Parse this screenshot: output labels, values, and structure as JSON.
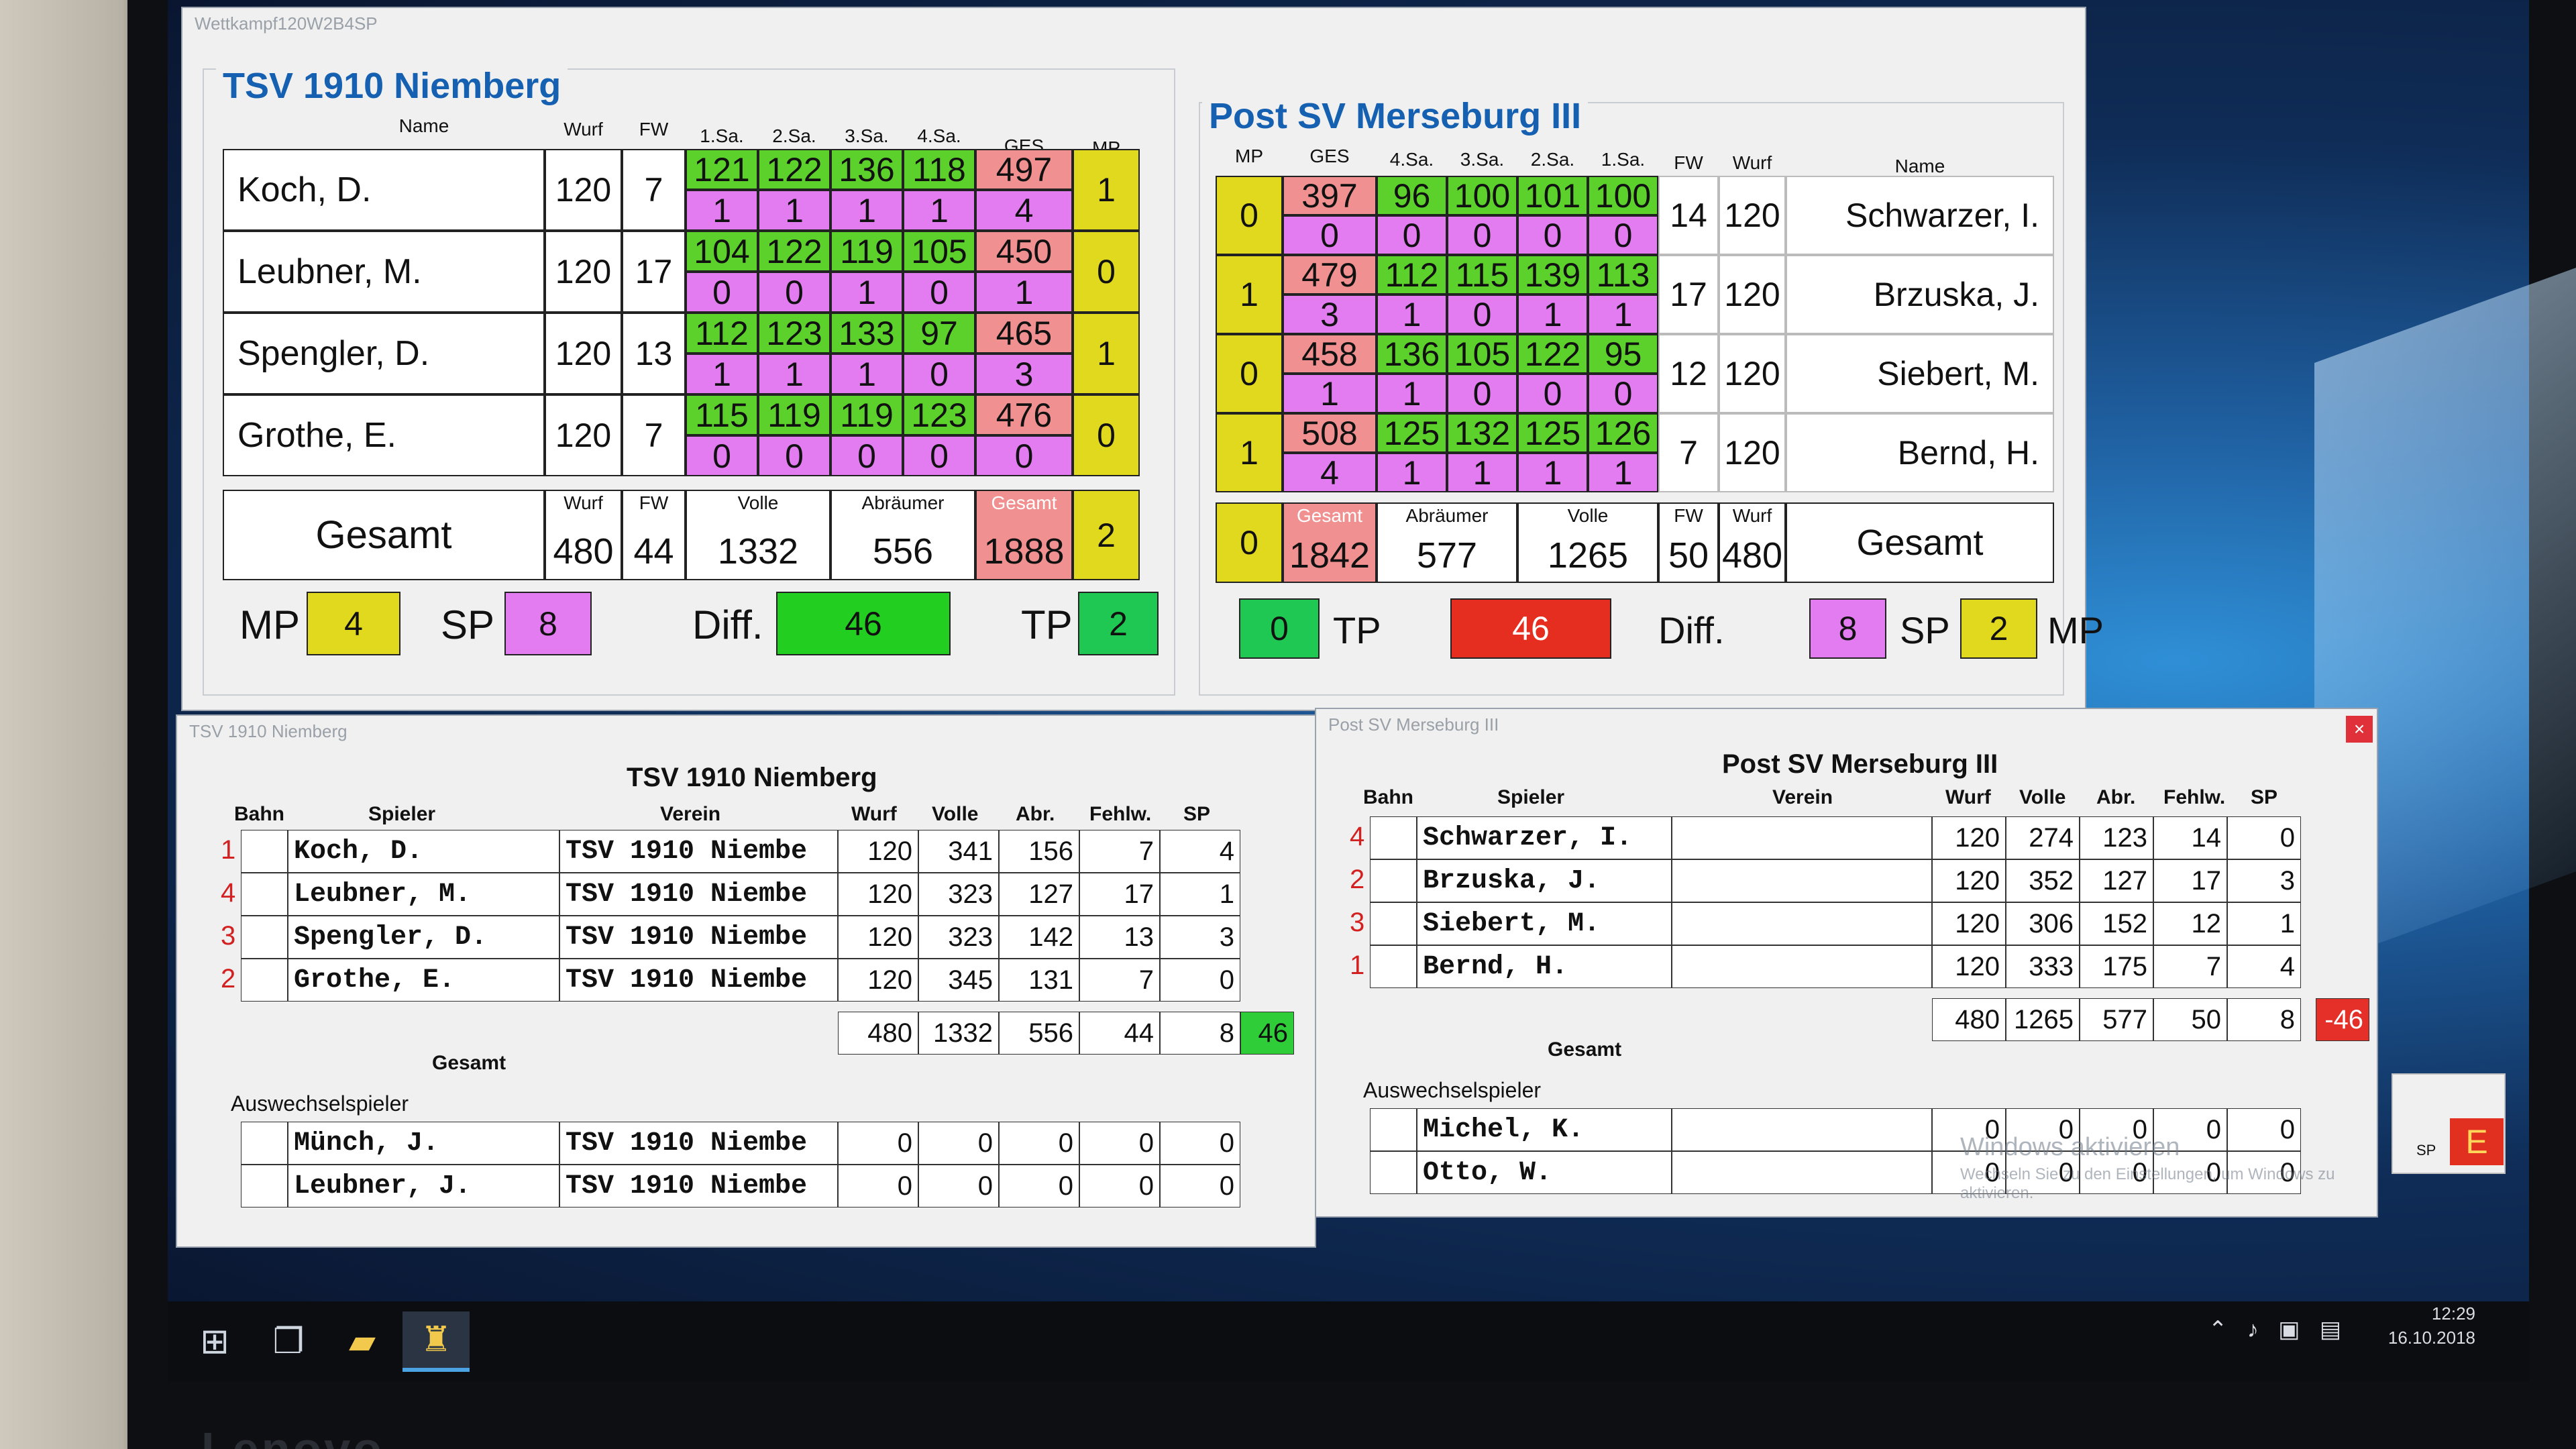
{
  "main": {
    "title": "Wettkampf120W2B4SP"
  },
  "home": {
    "team": "TSV 1910 Niemberg",
    "hdr": {
      "name": "Name",
      "wurf": "Wurf",
      "fw": "FW",
      "s1": "1.Sa.",
      "s2": "2.Sa.",
      "s3": "3.Sa.",
      "s4": "4.Sa.",
      "ges": "GES",
      "mp": "MP"
    },
    "players": [
      {
        "name": "Koch, D.",
        "wurf": "120",
        "fw": "7",
        "s": [
          "121",
          "122",
          "136",
          "118"
        ],
        "ges": "497",
        "sp": [
          "1",
          "1",
          "1",
          "1"
        ],
        "spsum": "4",
        "mp": "1"
      },
      {
        "name": "Leubner, M.",
        "wurf": "120",
        "fw": "17",
        "s": [
          "104",
          "122",
          "119",
          "105"
        ],
        "ges": "450",
        "sp": [
          "0",
          "0",
          "1",
          "0"
        ],
        "spsum": "1",
        "mp": "0"
      },
      {
        "name": "Spengler, D.",
        "wurf": "120",
        "fw": "13",
        "s": [
          "112",
          "123",
          "133",
          "97"
        ],
        "ges": "465",
        "sp": [
          "1",
          "1",
          "1",
          "0"
        ],
        "spsum": "3",
        "mp": "1"
      },
      {
        "name": "Grothe, E.",
        "wurf": "120",
        "fw": "7",
        "s": [
          "115",
          "119",
          "119",
          "123"
        ],
        "ges": "476",
        "sp": [
          "0",
          "0",
          "0",
          "0"
        ],
        "spsum": "0",
        "mp": "0"
      }
    ],
    "total": {
      "label": "Gesamt",
      "wurf_l": "Wurf",
      "fw_l": "FW",
      "volle_l": "Volle",
      "abr_l": "Abräumer",
      "ges_l": "Gesamt",
      "wurf": "480",
      "fw": "44",
      "volle": "1332",
      "abr": "556",
      "ges": "1888",
      "mp": "2"
    },
    "summary": {
      "mp_l": "MP",
      "mp": "4",
      "sp_l": "SP",
      "sp": "8",
      "diff_l": "Diff.",
      "diff": "46",
      "tp_l": "TP",
      "tp": "2"
    }
  },
  "guest": {
    "team": "Post SV Merseburg III",
    "hdr": {
      "mp": "MP",
      "ges": "GES",
      "s4": "4.Sa.",
      "s3": "3.Sa.",
      "s2": "2.Sa.",
      "s1": "1.Sa.",
      "fw": "FW",
      "wurf": "Wurf",
      "name": "Name"
    },
    "players": [
      {
        "name": "Schwarzer, I.",
        "wurf": "120",
        "fw": "14",
        "s": [
          "96",
          "100",
          "101",
          "100"
        ],
        "ges": "397",
        "sp": [
          "0",
          "0",
          "0",
          "0"
        ],
        "spsum": "0",
        "mp": "0"
      },
      {
        "name": "Brzuska, J.",
        "wurf": "120",
        "fw": "17",
        "s": [
          "112",
          "115",
          "139",
          "113"
        ],
        "ges": "479",
        "sp": [
          "1",
          "0",
          "1",
          "1"
        ],
        "spsum": "3",
        "mp": "1"
      },
      {
        "name": "Siebert, M.",
        "wurf": "120",
        "fw": "12",
        "s": [
          "136",
          "105",
          "122",
          "95"
        ],
        "ges": "458",
        "sp": [
          "1",
          "0",
          "0",
          "0"
        ],
        "spsum": "1",
        "mp": "0"
      },
      {
        "name": "Bernd, H.",
        "wurf": "120",
        "fw": "7",
        "s": [
          "125",
          "132",
          "125",
          "126"
        ],
        "ges": "508",
        "sp": [
          "1",
          "1",
          "1",
          "1"
        ],
        "spsum": "4",
        "mp": "1"
      }
    ],
    "total": {
      "label": "Gesamt",
      "ges_l": "Gesamt",
      "abr_l": "Abräumer",
      "volle_l": "Volle",
      "fw_l": "FW",
      "wurf_l": "Wurf",
      "mp": "0",
      "ges": "1842",
      "abr": "577",
      "volle": "1265",
      "fw": "50",
      "wurf": "480"
    },
    "summary": {
      "tp": "0",
      "tp_l": "TP",
      "diff": "46",
      "diff_l": "Diff.",
      "sp": "8",
      "sp_l": "SP",
      "mp": "2",
      "mp_l": "MP"
    }
  },
  "homeWin": {
    "title": "TSV 1910 Niemberg",
    "heading": "TSV 1910 Niemberg",
    "cols": {
      "bahn": "Bahn",
      "spieler": "Spieler",
      "verein": "Verein",
      "wurf": "Wurf",
      "volle": "Volle",
      "abr": "Abr.",
      "fehlw": "Fehlw.",
      "sp": "SP"
    },
    "rows": [
      {
        "bahn": "1",
        "spieler": "Koch, D.",
        "verein": "TSV 1910 Niembe",
        "wurf": "120",
        "volle": "341",
        "abr": "156",
        "fehlw": "7",
        "sp": "4"
      },
      {
        "bahn": "4",
        "spieler": "Leubner, M.",
        "verein": "TSV 1910 Niembe",
        "wurf": "120",
        "volle": "323",
        "abr": "127",
        "fehlw": "17",
        "sp": "1"
      },
      {
        "bahn": "3",
        "spieler": "Spengler, D.",
        "verein": "TSV 1910 Niembe",
        "wurf": "120",
        "volle": "323",
        "abr": "142",
        "fehlw": "13",
        "sp": "3"
      },
      {
        "bahn": "2",
        "spieler": "Grothe, E.",
        "verein": "TSV 1910 Niembe",
        "wurf": "120",
        "volle": "345",
        "abr": "131",
        "fehlw": "7",
        "sp": "0"
      }
    ],
    "gesamt": {
      "label": "Gesamt",
      "wurf": "480",
      "volle": "1332",
      "abr": "556",
      "fehlw": "44",
      "sp": "8",
      "diff": "46"
    },
    "subs_label": "Auswechselspieler",
    "subs": [
      {
        "spieler": "Münch, J.",
        "verein": "TSV 1910 Niembe",
        "wurf": "0",
        "volle": "0",
        "abr": "0",
        "fehlw": "0",
        "sp": "0"
      },
      {
        "spieler": "Leubner, J.",
        "verein": "TSV 1910 Niembe",
        "wurf": "0",
        "volle": "0",
        "abr": "0",
        "fehlw": "0",
        "sp": "0"
      }
    ]
  },
  "guestWin": {
    "title": "Post SV Merseburg III",
    "heading": "Post SV Merseburg III",
    "close": "×",
    "cols": {
      "bahn": "Bahn",
      "spieler": "Spieler",
      "verein": "Verein",
      "wurf": "Wurf",
      "volle": "Volle",
      "abr": "Abr.",
      "fehlw": "Fehlw.",
      "sp": "SP"
    },
    "rows": [
      {
        "bahn": "4",
        "spieler": "Schwarzer, I.",
        "verein": "",
        "wurf": "120",
        "volle": "274",
        "abr": "123",
        "fehlw": "14",
        "sp": "0"
      },
      {
        "bahn": "2",
        "spieler": "Brzuska, J.",
        "verein": "",
        "wurf": "120",
        "volle": "352",
        "abr": "127",
        "fehlw": "17",
        "sp": "3"
      },
      {
        "bahn": "3",
        "spieler": "Siebert, M.",
        "verein": "",
        "wurf": "120",
        "volle": "306",
        "abr": "152",
        "fehlw": "12",
        "sp": "1"
      },
      {
        "bahn": "1",
        "spieler": "Bernd, H.",
        "verein": "",
        "wurf": "120",
        "volle": "333",
        "abr": "175",
        "fehlw": "7",
        "sp": "4"
      }
    ],
    "gesamt": {
      "label": "Gesamt",
      "wurf": "480",
      "volle": "1265",
      "abr": "577",
      "fehlw": "50",
      "sp": "8",
      "diff": "-46"
    },
    "subs_label": "Auswechselspieler",
    "subs": [
      {
        "spieler": "Michel, K.",
        "verein": "",
        "wurf": "0",
        "volle": "0",
        "abr": "0",
        "fehlw": "0",
        "sp": "0"
      },
      {
        "spieler": "Otto, W.",
        "verein": "",
        "wurf": "0",
        "volle": "0",
        "abr": "0",
        "fehlw": "0",
        "sp": "0"
      }
    ]
  },
  "side": {
    "sp": "SP",
    "e": "E"
  },
  "watermark": {
    "line1": "Windows aktivieren",
    "line2": "Wechseln Sie zu den Einstellungen, um Windows zu aktivieren."
  },
  "tray": {
    "time": "12:29",
    "date": "16.10.2018"
  },
  "brand": "Lenovo",
  "colors": {
    "green": "#5cd12b",
    "pink": "#e27cf0",
    "salmon": "#f09090",
    "yellow": "#e1d91e",
    "red": "#e52e20",
    "tp": "#1ec853",
    "team_blue": "#1560b0"
  }
}
